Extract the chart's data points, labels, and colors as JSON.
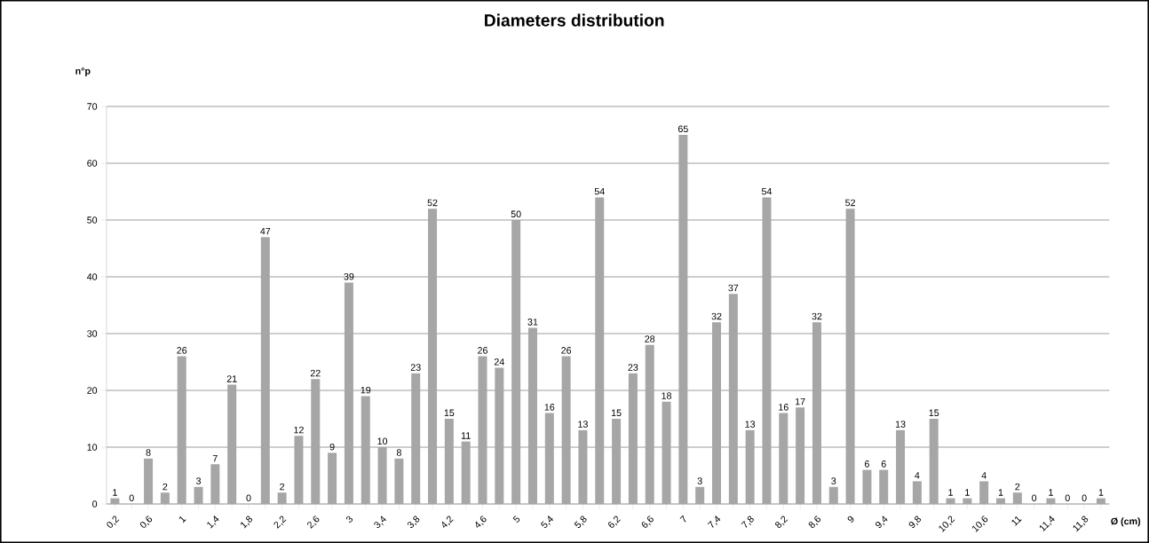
{
  "chart_data": {
    "type": "bar",
    "title": "Diameters distribution",
    "xlabel": "Ø (cm)",
    "ylabel": "n°p",
    "categories": [
      "0,2",
      null,
      "0,6",
      null,
      "1",
      null,
      "1,4",
      null,
      "1,8",
      null,
      "2,2",
      null,
      "2,6",
      null,
      "3",
      null,
      "3,4",
      null,
      "3,8",
      null,
      "4,2",
      null,
      "4,6",
      null,
      "5",
      null,
      "5,4",
      null,
      "5,8",
      null,
      "6,2",
      null,
      "6,6",
      null,
      "7",
      null,
      "7,4",
      null,
      "7,8",
      null,
      "8,2",
      null,
      "8,6",
      null,
      "9",
      null,
      "9,4",
      null,
      "9,8",
      null,
      "10,2",
      null,
      "10,6",
      null,
      "11",
      null,
      "11,4",
      null,
      "11,8",
      null
    ],
    "values": [
      1,
      0,
      8,
      2,
      26,
      3,
      7,
      21,
      0,
      47,
      2,
      12,
      22,
      9,
      39,
      19,
      10,
      8,
      23,
      52,
      15,
      11,
      26,
      24,
      50,
      31,
      16,
      26,
      13,
      54,
      15,
      23,
      28,
      18,
      65,
      3,
      32,
      37,
      13,
      54,
      16,
      17,
      32,
      3,
      52,
      6,
      6,
      13,
      4,
      15,
      1,
      1,
      4,
      1,
      2,
      0,
      1,
      0,
      0,
      1
    ],
    "color": "#a6a6a6",
    "ylim": [
      0,
      70
    ],
    "yticks": [
      0,
      10,
      20,
      30,
      40,
      50,
      60,
      70
    ],
    "grid": "y",
    "data_labels": true
  }
}
